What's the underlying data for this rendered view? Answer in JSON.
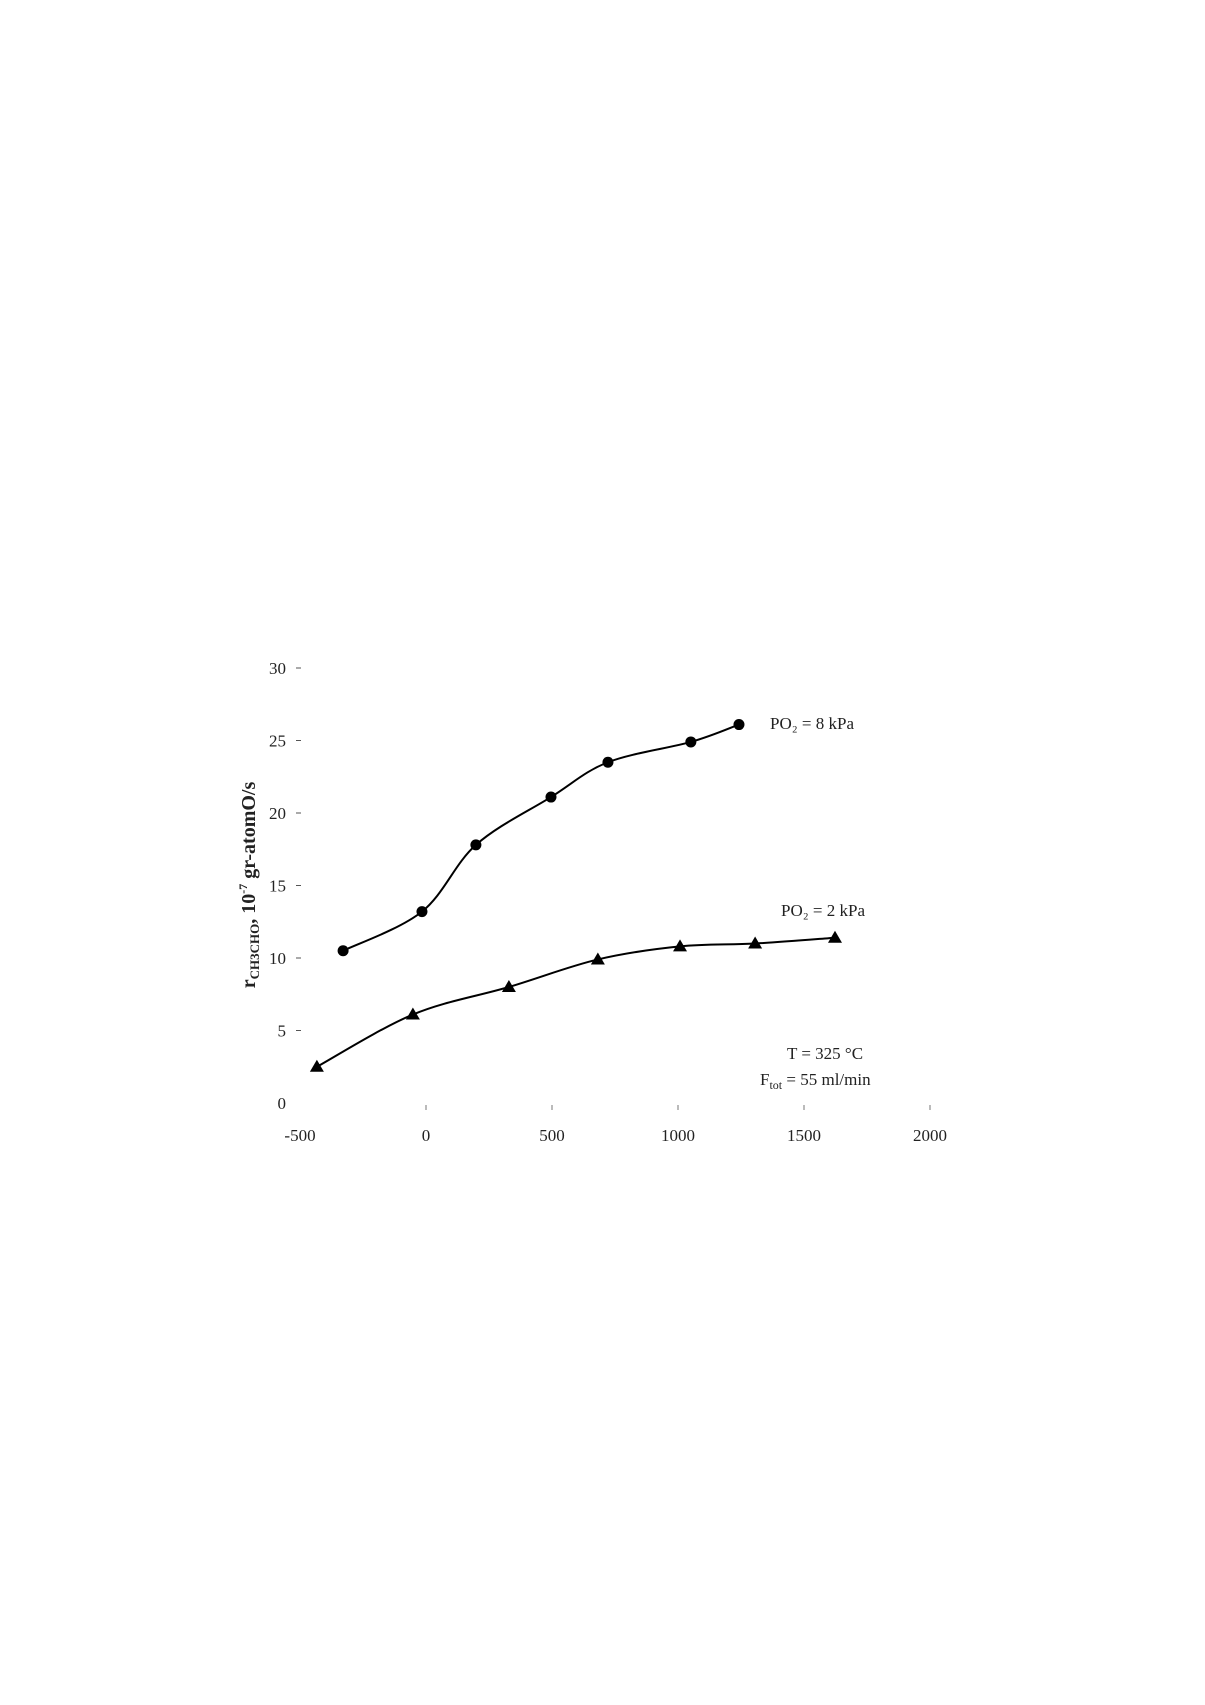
{
  "chart_data": {
    "type": "line",
    "ylabel": {
      "main": "r",
      "sub": "CH3CHO",
      "mid": ", 10",
      "sup": "-7",
      "rest": " gr-atomO/s"
    },
    "series": [
      {
        "name": "PO₂ = 8 kPa",
        "marker": "circle",
        "color": "#000000",
        "x": [
          -329,
          -16,
          198,
          496,
          722,
          1051,
          1242
        ],
        "values": [
          10.5,
          13.2,
          17.8,
          21.1,
          23.5,
          24.9,
          26.1
        ]
      },
      {
        "name": "PO₂ = 2 kPa",
        "marker": "triangle",
        "color": "#000000",
        "x": [
          -433,
          -52,
          329,
          682,
          1008,
          1306,
          1623
        ],
        "values": [
          2.5,
          6.1,
          8.0,
          9.9,
          10.8,
          11.0,
          11.4
        ]
      }
    ],
    "annotations": [
      {
        "text": "T = 325 °C"
      },
      {
        "text": "F",
        "sub": "tot",
        "rest": " = 55 ml/min"
      }
    ],
    "xlim": [
      -500,
      2000
    ],
    "xticks": [
      -500,
      0,
      500,
      1000,
      1500,
      2000
    ],
    "ylim": [
      0,
      30
    ],
    "yticks": [
      0,
      5,
      10,
      15,
      20,
      25,
      30
    ]
  }
}
